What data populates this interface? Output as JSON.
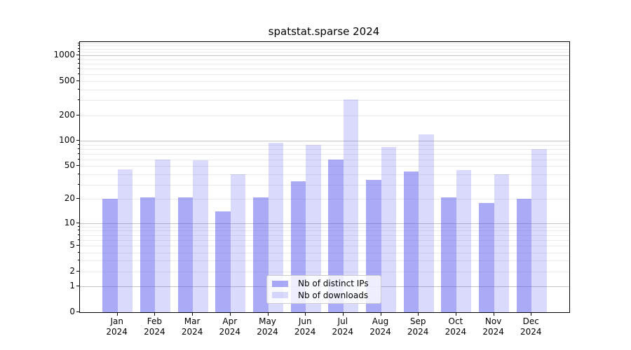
{
  "title": "spatstat.sparse 2024",
  "chart_data": {
    "type": "bar",
    "title": "spatstat.sparse 2024",
    "categories": [
      "Jan",
      "Feb",
      "Mar",
      "Apr",
      "May",
      "Jun",
      "Jul",
      "Aug",
      "Sep",
      "Oct",
      "Nov",
      "Dec"
    ],
    "year_label": "2024",
    "series": [
      {
        "name": "Nb of distinct IPs",
        "color": "#aaaaf7",
        "fill": "rgba(85,85,240,0.5)",
        "values": [
          20,
          21,
          21,
          14,
          21,
          33,
          60,
          34,
          43,
          21,
          18,
          20
        ]
      },
      {
        "name": "Nb of downloads",
        "color": "#dadafb",
        "fill": "rgba(85,85,240,0.22)",
        "values": [
          46,
          60,
          59,
          40,
          95,
          90,
          308,
          84,
          120,
          45,
          40,
          79
        ]
      }
    ],
    "y_axis": {
      "scale": "log10(value+1)",
      "tick_labels": [
        "1000",
        "500",
        "200",
        "100",
        "50",
        "20",
        "10",
        "5",
        "2",
        "1",
        "0"
      ],
      "tick_values": [
        1000,
        500,
        200,
        100,
        50,
        20,
        10,
        5,
        2,
        1,
        0
      ],
      "minor_values": [
        3,
        4,
        6,
        7,
        8,
        9,
        30,
        40,
        60,
        70,
        80,
        90,
        300,
        400,
        600,
        700,
        800,
        900,
        1100,
        1200,
        1300,
        1400
      ],
      "decade_values": [
        1,
        10,
        100,
        1000
      ],
      "top_value": 1440
    },
    "x_axis": {
      "tick_labels_line1": [
        "Jan",
        "Feb",
        "Mar",
        "Apr",
        "May",
        "Jun",
        "Jul",
        "Aug",
        "Sep",
        "Oct",
        "Nov",
        "Dec"
      ],
      "tick_labels_line2": "2024"
    },
    "legend": {
      "position": "lower center",
      "items": [
        "Nb of distinct IPs",
        "Nb of downloads"
      ]
    },
    "grid": "horizontal",
    "colors": {
      "major_grid": "#c3c3c3",
      "minor_grid": "#eaeaea",
      "spine": "#000000",
      "background": "#ffffff",
      "text": "#000000"
    }
  }
}
